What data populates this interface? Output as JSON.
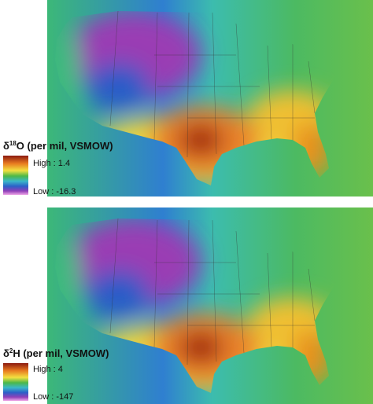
{
  "maps": [
    {
      "symbol": "δ",
      "mass": "18",
      "element": "O",
      "unit": " (per mil, VSMOW)",
      "high_label": "High : 1.4",
      "low_label": "Low : -16.3"
    },
    {
      "symbol": "δ",
      "mass": "2",
      "element": "H",
      "unit": " (per mil, VSMOW)",
      "high_label": "High : 4",
      "low_label": "Low : -147"
    }
  ]
}
